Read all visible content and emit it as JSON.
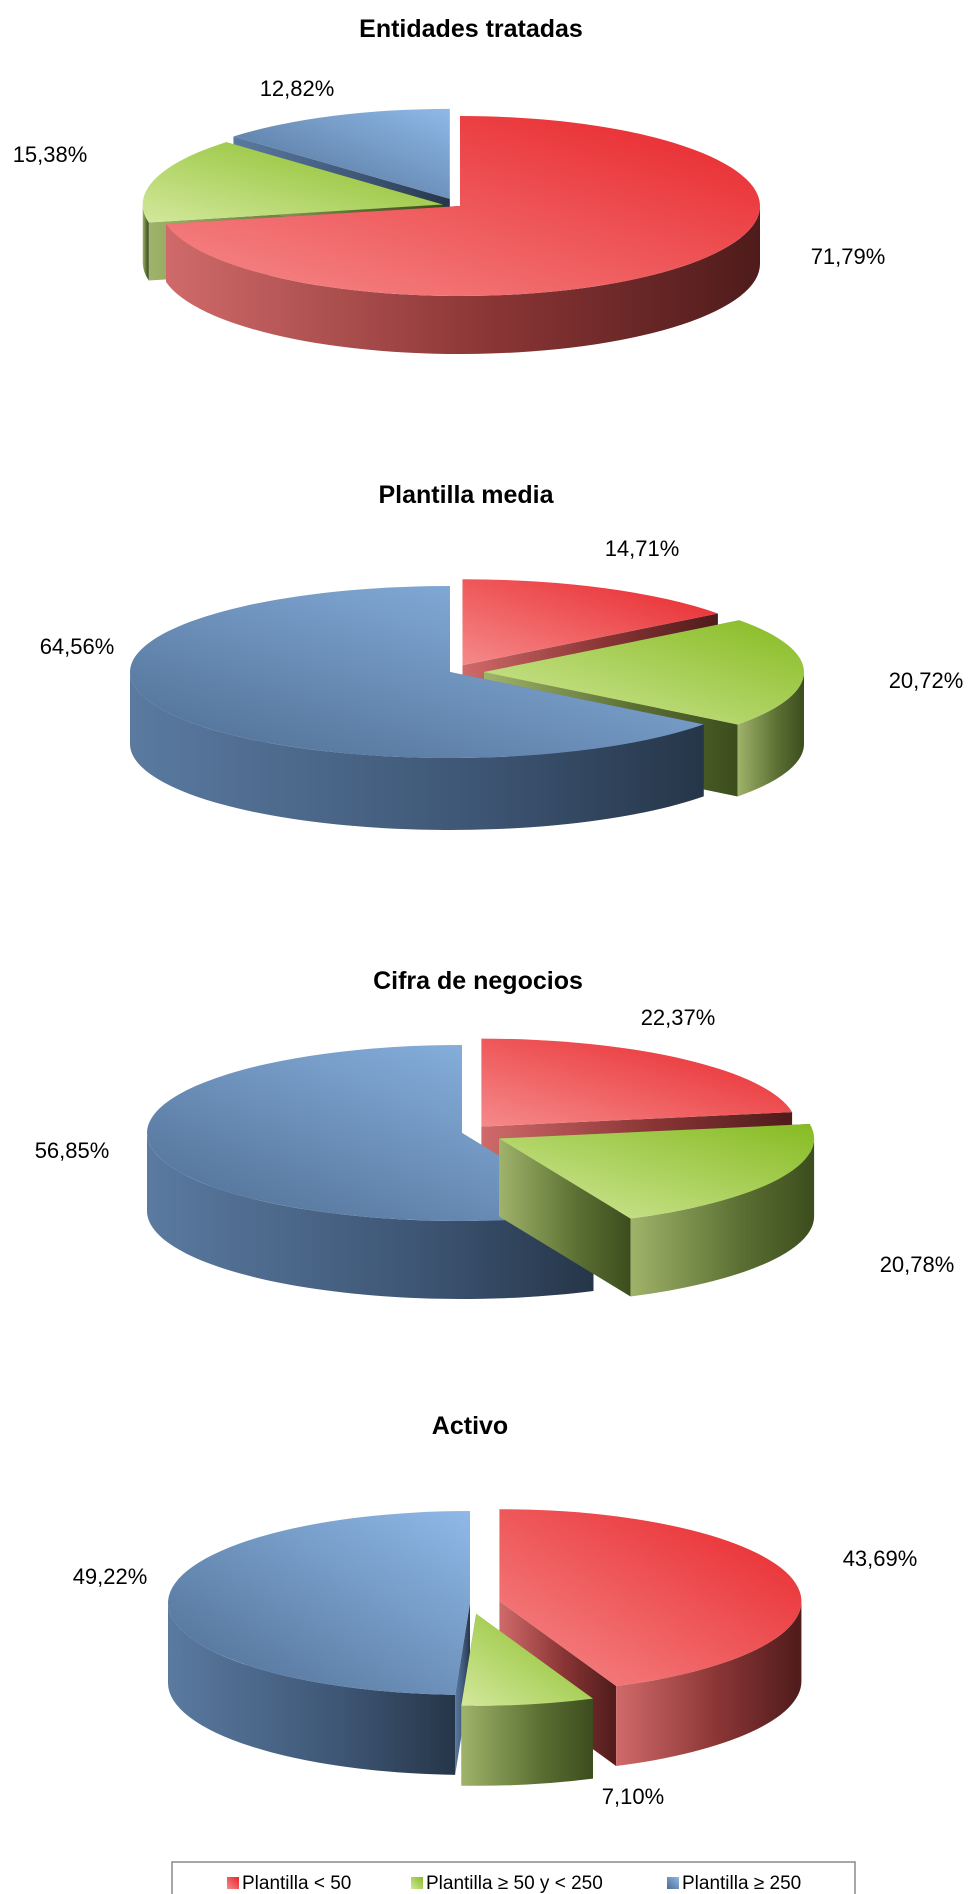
{
  "chart_data": [
    {
      "type": "pie",
      "title": "Entidades tratadas",
      "labels": [
        "Plantilla < 50",
        "Plantilla ≥ 50 y < 250",
        "Plantilla ≥ 250"
      ],
      "values": [
        71.79,
        15.38,
        12.82
      ],
      "value_labels": [
        "71,79%",
        "15,38%",
        "12,82%"
      ]
    },
    {
      "type": "pie",
      "title": "Plantilla media",
      "labels": [
        "Plantilla < 50",
        "Plantilla ≥ 50 y < 250",
        "Plantilla ≥ 250"
      ],
      "values": [
        14.71,
        20.72,
        64.56
      ],
      "value_labels": [
        "14,71%",
        "20,72%",
        "64,56%"
      ]
    },
    {
      "type": "pie",
      "title": "Cifra de negocios",
      "labels": [
        "Plantilla < 50",
        "Plantilla ≥ 50 y < 250",
        "Plantilla ≥ 250"
      ],
      "values": [
        22.37,
        20.78,
        56.85
      ],
      "value_labels": [
        "22,37%",
        "20,78%",
        "56,85%"
      ]
    },
    {
      "type": "pie",
      "title": "Activo",
      "labels": [
        "Plantilla < 50",
        "Plantilla ≥ 50 y < 250",
        "Plantilla ≥ 250"
      ],
      "values": [
        43.69,
        7.1,
        49.22
      ],
      "value_labels": [
        "43,69%",
        "7,10%",
        "49,22%"
      ]
    }
  ],
  "legend": {
    "placement": "bottom",
    "items": [
      {
        "label": "Plantilla < 50",
        "color": "#e8383d"
      },
      {
        "label": "Plantilla ≥ 50 y < 250",
        "color": "#9bc53d"
      },
      {
        "label": "Plantilla ≥ 250",
        "color": "#5b7fb5"
      }
    ]
  },
  "colors": {
    "red_top_light": "#f37f7f",
    "red_top_dark": "#e8252a",
    "red_side_light": "#b85b5b",
    "red_side_dark": "#5e1f1f",
    "green_top_light": "#c9e08a",
    "green_top_dark": "#8cbf2b",
    "green_side_light": "#8a9f55",
    "green_side_dark": "#3f5020",
    "blue_top_light": "#8fb7e6",
    "blue_top_dark": "#4c6d93",
    "blue_side_light": "#5f7d9f",
    "blue_side_dark": "#2e4055"
  }
}
